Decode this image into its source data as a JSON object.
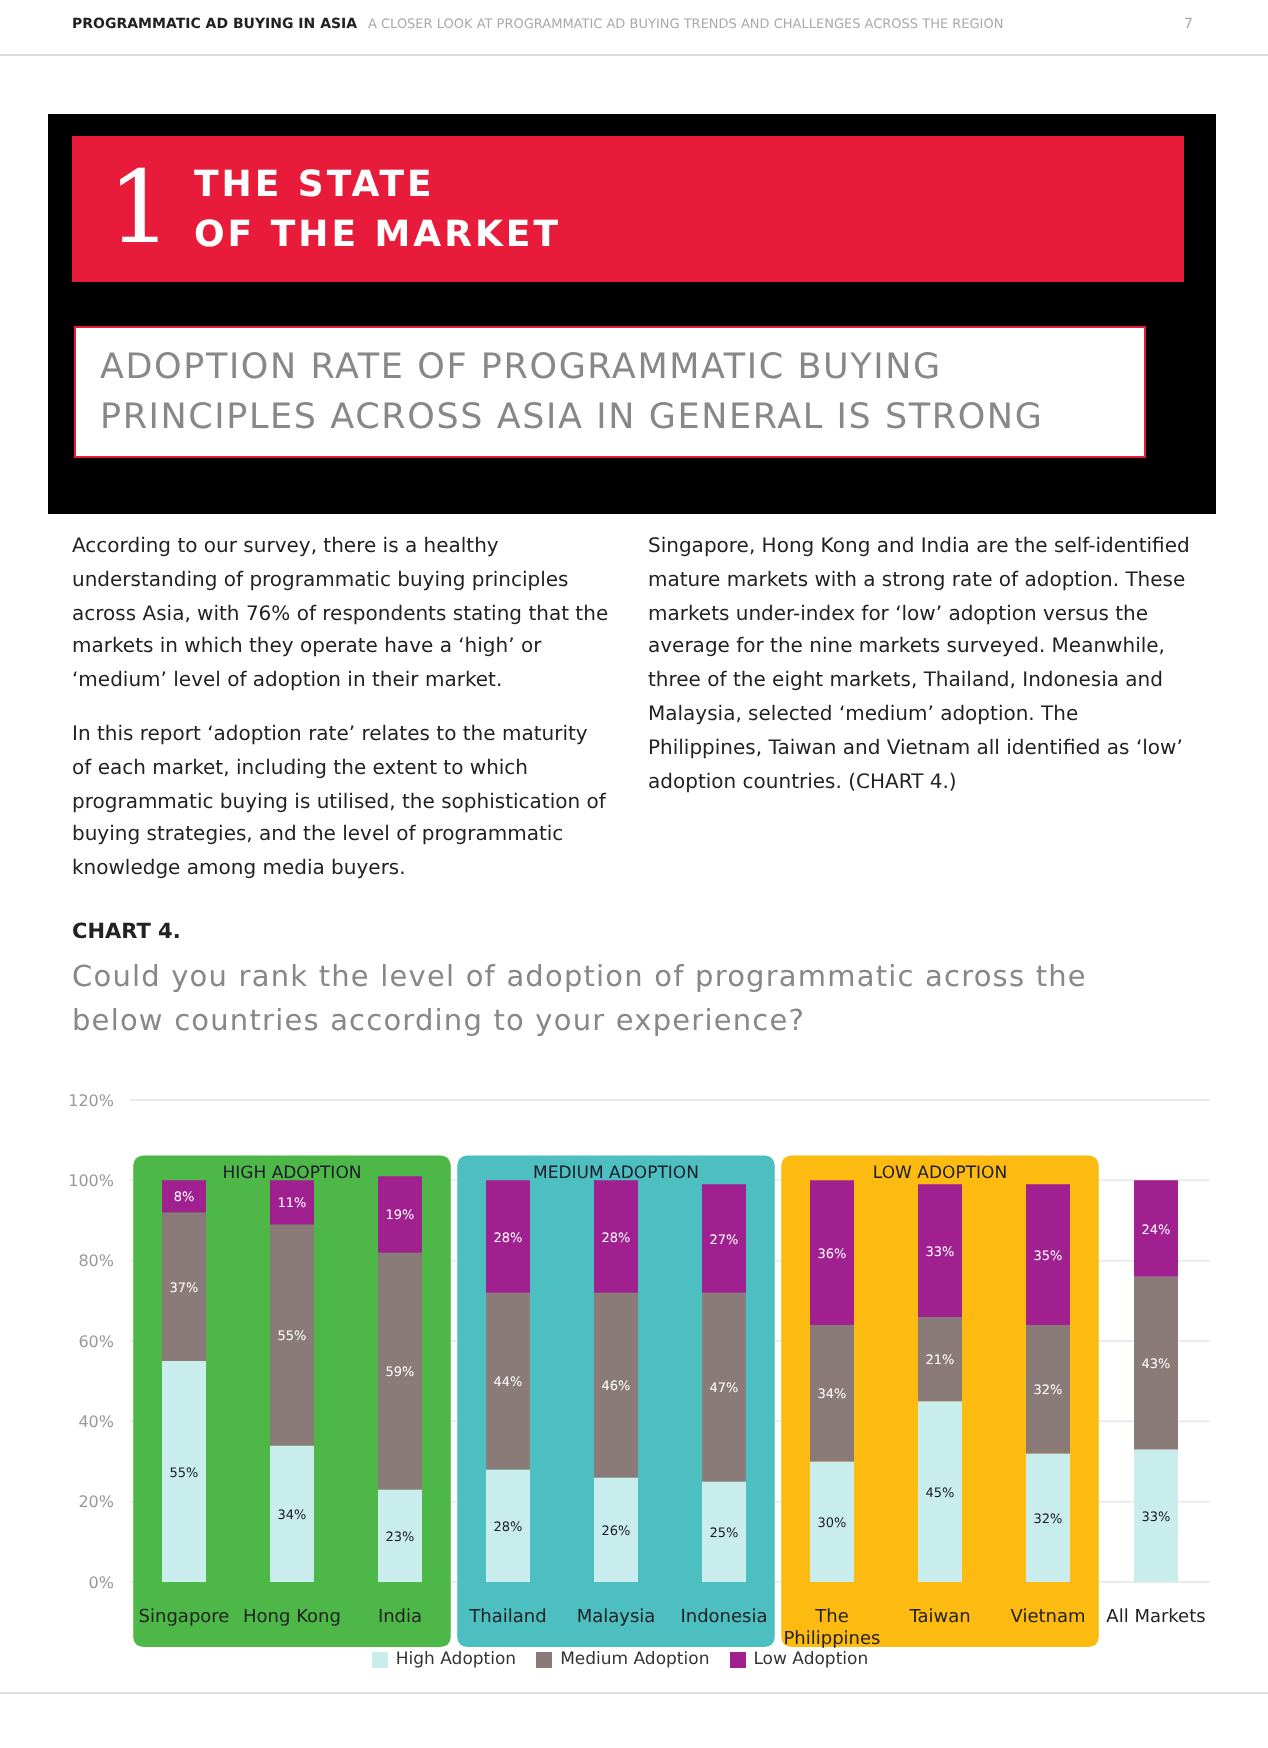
{
  "chart_data": {
    "type": "bar",
    "stacked": true,
    "subtitle": "CHART 4.",
    "title": "Could you rank the level of adoption of programmatic across the below countries according to your experience?",
    "annotations": [
      "PROGRAMMATIC AD BUYING IN ASIA",
      "A CLOSER LOOK AT PROGRAMMATIC AD BUYING TRENDS AND CHALLENGES ACROSS THE REGION",
      "7",
      "1",
      "THE STATE\nOF THE MARKET",
      "ADOPTION RATE OF PROGRAMMATIC BUYING PRINCIPLES ACROSS ASIA IN GENERAL IS STRONG",
      "According to our survey, there is a healthy understanding of programmatic buying principles across Asia, with 76% of respondents stating that the markets in which they operate have a ‘high’ or ‘medium’ level of adoption in their market.",
      "In this report ‘adoption rate’ relates to the maturity of each market, including the extent to which programmatic buying is utilised, the sophistication of buying strategies, and the level of programmatic knowledge among media buyers.",
      "Singapore, Hong Kong and India are the self-identified mature markets with a strong rate of adoption. These markets under-index for ‘low’ adoption versus the average for the nine markets surveyed. Meanwhile, three of the eight markets, Thailand, Indonesia and Malaysia, selected ‘medium’ adoption. The Philippines, Taiwan and Vietnam all identified as ‘low’ adoption countries. (CHART 4.)"
    ],
    "categories": [
      "Singapore",
      "Hong Kong",
      "India",
      "Thailand",
      "Malaysia",
      "Indonesia",
      "The Philippines",
      "Taiwan",
      "Vietnam",
      "All Markets"
    ],
    "series": [
      {
        "name": "High Adoption",
        "color": "#c9ecec",
        "values": [
          55,
          34,
          23,
          28,
          26,
          25,
          30,
          45,
          32,
          33
        ],
        "value_labels": [
          "55%",
          "34%",
          "23%",
          "28%",
          "26%",
          "25%",
          "30%",
          "45%",
          "32%",
          "33%"
        ]
      },
      {
        "name": "Medium Adoption",
        "color": "#8a7a78",
        "values": [
          37,
          55,
          59,
          44,
          46,
          47,
          34,
          21,
          32,
          43
        ],
        "value_labels": [
          "37%",
          "55%",
          "59%",
          "44%",
          "46%",
          "47%",
          "34%",
          "21%",
          "32%",
          "43%"
        ]
      },
      {
        "name": "Low Adoption",
        "color": "#a0208f",
        "values": [
          8,
          11,
          19,
          28,
          28,
          27,
          36,
          33,
          35,
          24
        ],
        "value_labels": [
          "8%",
          "11%",
          "19%",
          "28%",
          "28%",
          "27%",
          "36%",
          "33%",
          "35%",
          "24%"
        ]
      }
    ],
    "bands": [
      {
        "axis": "x",
        "from": "Singapore",
        "to": "India",
        "label": "HIGH ADOPTION",
        "color": "#4db848"
      },
      {
        "axis": "x",
        "from": "Thailand",
        "to": "Indonesia",
        "label": "MEDIUM ADOPTION",
        "color": "#4dbfc1"
      },
      {
        "axis": "x",
        "from": "The Philippines",
        "to": "Vietnam",
        "label": "LOW ADOPTION",
        "color": "#fdbb12"
      }
    ],
    "ylim": [
      0,
      120
    ],
    "yticks": [
      {
        "value": 0,
        "label": "0%"
      },
      {
        "value": 20,
        "label": "20%"
      },
      {
        "value": 40,
        "label": "40%"
      },
      {
        "value": 60,
        "label": "60%"
      },
      {
        "value": 80,
        "label": "80%"
      },
      {
        "value": 100,
        "label": "100%"
      },
      {
        "value": 120,
        "label": "120%"
      }
    ],
    "grid": "y",
    "legend": "bottom"
  }
}
